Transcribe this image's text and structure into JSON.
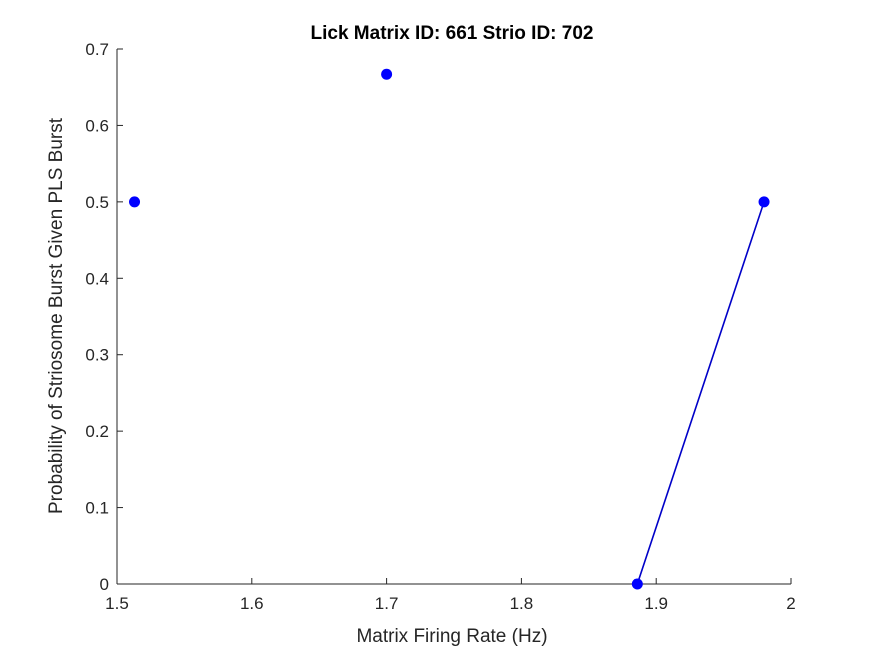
{
  "chart_data": {
    "type": "scatter",
    "title": "Lick Matrix ID: 661 Strio ID: 702",
    "xlabel": "Matrix Firing Rate (Hz)",
    "ylabel": "Probability of Striosome Burst Given PLS Burst",
    "xlim": [
      1.5,
      2.0
    ],
    "ylim": [
      0,
      0.7
    ],
    "xticks": [
      1.5,
      1.6,
      1.7,
      1.8,
      1.9,
      2.0
    ],
    "xtick_labels": [
      "1.5",
      "1.6",
      "1.7",
      "1.8",
      "1.9",
      "2"
    ],
    "yticks": [
      0,
      0.1,
      0.2,
      0.3,
      0.4,
      0.5,
      0.6,
      0.7
    ],
    "ytick_labels": [
      "0",
      "0.1",
      "0.2",
      "0.3",
      "0.4",
      "0.5",
      "0.6",
      "0.7"
    ],
    "grid": false,
    "box": "left-bottom axes only",
    "color": "#0000ff",
    "line_color": "#0000c8",
    "points": [
      {
        "x": 1.513,
        "y": 0.5
      },
      {
        "x": 1.7,
        "y": 0.667
      },
      {
        "x": 1.886,
        "y": 0.0
      },
      {
        "x": 1.98,
        "y": 0.5
      }
    ],
    "line_segments": [
      [
        {
          "x": 1.886,
          "y": 0.0
        },
        {
          "x": 1.98,
          "y": 0.5
        }
      ]
    ]
  }
}
